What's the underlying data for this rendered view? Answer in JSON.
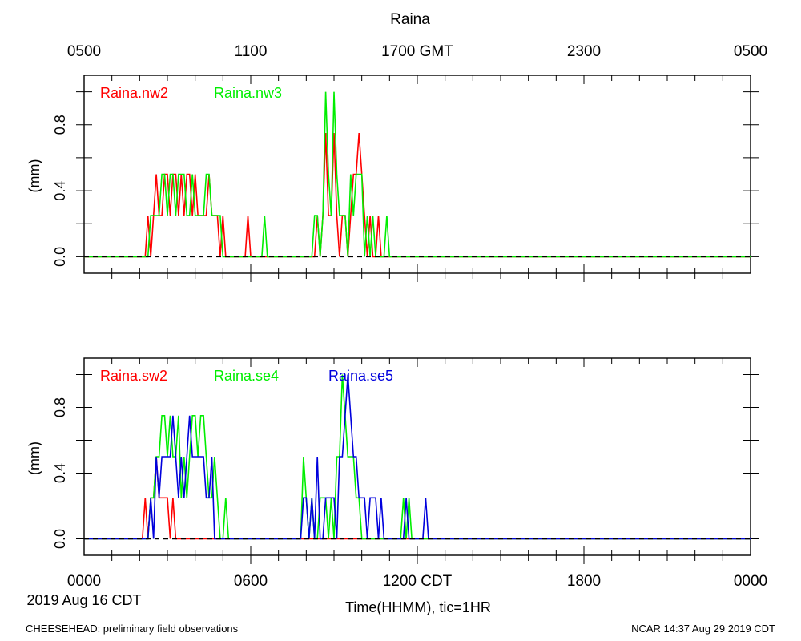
{
  "title": "Raina",
  "top_axis_labels": [
    "0500",
    "1100",
    "1700 GMT",
    "2300",
    "0500"
  ],
  "bottom_axis_labels": [
    "0000",
    "0600",
    "1200 CDT",
    "1800",
    "0000"
  ],
  "date_label": "2019 Aug 16 CDT",
  "xlabel": "Time(HHMM), tic=1HR",
  "footer_left": "CHEESEHEAD: preliminary field observations",
  "footer_right": "NCAR 14:37 Aug 29 2019 CDT",
  "colors": {
    "nw2": "#ff0000",
    "nw3": "#00ee00",
    "sw2": "#ff0000",
    "se4": "#00ee00",
    "se5": "#0000dd"
  },
  "chart_data": [
    {
      "type": "line",
      "panel": "upper",
      "ylabel": "(mm)",
      "ylim": [
        -0.1,
        1.1
      ],
      "yticks": [
        "0.0",
        "0.4",
        "0.8"
      ],
      "xlim_hours_cdt": [
        0,
        24
      ],
      "series": [
        {
          "name": "Raina.nw2",
          "points": [
            [
              0,
              0
            ],
            [
              2.2,
              0
            ],
            [
              2.3,
              0.25
            ],
            [
              2.4,
              0
            ],
            [
              2.5,
              0.25
            ],
            [
              2.6,
              0.5
            ],
            [
              2.7,
              0.25
            ],
            [
              2.8,
              0.25
            ],
            [
              2.9,
              0.5
            ],
            [
              3.0,
              0.5
            ],
            [
              3.1,
              0.25
            ],
            [
              3.2,
              0.5
            ],
            [
              3.3,
              0.5
            ],
            [
              3.4,
              0.25
            ],
            [
              3.5,
              0.5
            ],
            [
              3.6,
              0.25
            ],
            [
              3.7,
              0.5
            ],
            [
              3.8,
              0.5
            ],
            [
              3.9,
              0.25
            ],
            [
              4.0,
              0.5
            ],
            [
              4.1,
              0.25
            ],
            [
              4.2,
              0.25
            ],
            [
              4.3,
              0.25
            ],
            [
              4.4,
              0.25
            ],
            [
              4.5,
              0.5
            ],
            [
              4.6,
              0.25
            ],
            [
              4.7,
              0.25
            ],
            [
              4.8,
              0.25
            ],
            [
              4.9,
              0
            ],
            [
              5.0,
              0.25
            ],
            [
              5.1,
              0
            ],
            [
              5.8,
              0
            ],
            [
              5.9,
              0.25
            ],
            [
              6.0,
              0
            ],
            [
              8.3,
              0
            ],
            [
              8.4,
              0.25
            ],
            [
              8.5,
              0
            ],
            [
              8.6,
              0.25
            ],
            [
              8.7,
              0.75
            ],
            [
              8.8,
              0.25
            ],
            [
              8.9,
              0.25
            ],
            [
              9.0,
              0.75
            ],
            [
              9.1,
              0.25
            ],
            [
              9.2,
              0
            ],
            [
              9.3,
              0.25
            ],
            [
              9.4,
              0.25
            ],
            [
              9.5,
              0
            ],
            [
              9.6,
              0.25
            ],
            [
              9.7,
              0.5
            ],
            [
              9.8,
              0.5
            ],
            [
              9.9,
              0.75
            ],
            [
              10.0,
              0.5
            ],
            [
              10.1,
              0.25
            ],
            [
              10.2,
              0
            ],
            [
              10.3,
              0.25
            ],
            [
              10.4,
              0
            ],
            [
              10.5,
              0
            ],
            [
              10.6,
              0.25
            ],
            [
              10.7,
              0
            ],
            [
              24,
              0
            ]
          ]
        },
        {
          "name": "Raina.nw3",
          "points": [
            [
              0,
              0
            ],
            [
              2.3,
              0
            ],
            [
              2.4,
              0.25
            ],
            [
              2.5,
              0.25
            ],
            [
              2.6,
              0.25
            ],
            [
              2.7,
              0.25
            ],
            [
              2.8,
              0.5
            ],
            [
              2.9,
              0.5
            ],
            [
              3.0,
              0.25
            ],
            [
              3.1,
              0.5
            ],
            [
              3.2,
              0.5
            ],
            [
              3.3,
              0.25
            ],
            [
              3.4,
              0.5
            ],
            [
              3.5,
              0.5
            ],
            [
              3.6,
              0.5
            ],
            [
              3.7,
              0.25
            ],
            [
              3.8,
              0.25
            ],
            [
              3.9,
              0.5
            ],
            [
              4.0,
              0.25
            ],
            [
              4.1,
              0.25
            ],
            [
              4.2,
              0.25
            ],
            [
              4.3,
              0.25
            ],
            [
              4.4,
              0.5
            ],
            [
              4.5,
              0.5
            ],
            [
              4.6,
              0.25
            ],
            [
              4.7,
              0.25
            ],
            [
              4.8,
              0.25
            ],
            [
              4.9,
              0.25
            ],
            [
              5.0,
              0
            ],
            [
              5.1,
              0
            ],
            [
              6.4,
              0
            ],
            [
              6.5,
              0.25
            ],
            [
              6.6,
              0
            ],
            [
              8.2,
              0
            ],
            [
              8.3,
              0.25
            ],
            [
              8.4,
              0.25
            ],
            [
              8.5,
              0
            ],
            [
              8.6,
              0.25
            ],
            [
              8.7,
              1.0
            ],
            [
              8.8,
              0.5
            ],
            [
              8.9,
              0.25
            ],
            [
              9.0,
              1.0
            ],
            [
              9.1,
              0.5
            ],
            [
              9.2,
              0.25
            ],
            [
              9.3,
              0.25
            ],
            [
              9.4,
              0.25
            ],
            [
              9.5,
              0
            ],
            [
              9.6,
              0.5
            ],
            [
              9.7,
              0.25
            ],
            [
              9.8,
              0.5
            ],
            [
              9.9,
              0.5
            ],
            [
              10.0,
              0.5
            ],
            [
              10.1,
              0
            ],
            [
              10.2,
              0.25
            ],
            [
              10.3,
              0
            ],
            [
              10.4,
              0.25
            ],
            [
              10.5,
              0
            ],
            [
              10.8,
              0
            ],
            [
              10.9,
              0.25
            ],
            [
              11.0,
              0
            ],
            [
              24,
              0
            ]
          ]
        }
      ]
    },
    {
      "type": "line",
      "panel": "lower",
      "ylabel": "(mm)",
      "ylim": [
        -0.1,
        1.1
      ],
      "yticks": [
        "0.0",
        "0.4",
        "0.8"
      ],
      "xlim_hours_cdt": [
        0,
        24
      ],
      "series": [
        {
          "name": "Raina.sw2",
          "points": [
            [
              0,
              0
            ],
            [
              2.1,
              0
            ],
            [
              2.2,
              0.25
            ],
            [
              2.3,
              0
            ],
            [
              2.4,
              0.25
            ],
            [
              2.5,
              0.25
            ],
            [
              2.6,
              0.5
            ],
            [
              2.7,
              0.25
            ],
            [
              2.8,
              0.25
            ],
            [
              2.9,
              0.25
            ],
            [
              3.0,
              0.25
            ],
            [
              3.1,
              0
            ],
            [
              3.2,
              0.25
            ],
            [
              3.3,
              0
            ],
            [
              24,
              0
            ]
          ]
        },
        {
          "name": "Raina.se4",
          "points": [
            [
              0,
              0
            ],
            [
              2.3,
              0
            ],
            [
              2.4,
              0.25
            ],
            [
              2.5,
              0.25
            ],
            [
              2.6,
              0.5
            ],
            [
              2.7,
              0.5
            ],
            [
              2.8,
              0.75
            ],
            [
              2.9,
              0.75
            ],
            [
              3.0,
              0.5
            ],
            [
              3.1,
              0.75
            ],
            [
              3.2,
              0.5
            ],
            [
              3.3,
              0.5
            ],
            [
              3.4,
              0.75
            ],
            [
              3.5,
              0.25
            ],
            [
              3.6,
              0.5
            ],
            [
              3.7,
              0.25
            ],
            [
              3.8,
              0.5
            ],
            [
              3.9,
              0.75
            ],
            [
              4.0,
              0.75
            ],
            [
              4.1,
              0.5
            ],
            [
              4.2,
              0.75
            ],
            [
              4.3,
              0.75
            ],
            [
              4.4,
              0.5
            ],
            [
              4.5,
              0.25
            ],
            [
              4.6,
              0.25
            ],
            [
              4.7,
              0.5
            ],
            [
              4.8,
              0.25
            ],
            [
              4.9,
              0
            ],
            [
              5.0,
              0
            ],
            [
              5.1,
              0.25
            ],
            [
              5.2,
              0
            ],
            [
              7.8,
              0
            ],
            [
              7.9,
              0.5
            ],
            [
              8.0,
              0.25
            ],
            [
              8.1,
              0
            ],
            [
              8.2,
              0.25
            ],
            [
              8.3,
              0
            ],
            [
              8.4,
              0
            ],
            [
              8.5,
              0.25
            ],
            [
              8.6,
              0.25
            ],
            [
              8.7,
              0.25
            ],
            [
              8.8,
              0
            ],
            [
              8.9,
              0.25
            ],
            [
              9.0,
              0
            ],
            [
              9.1,
              0.5
            ],
            [
              9.2,
              0.5
            ],
            [
              9.3,
              1.0
            ],
            [
              9.4,
              0.75
            ],
            [
              9.5,
              0.5
            ],
            [
              9.6,
              0.5
            ],
            [
              9.7,
              0.5
            ],
            [
              9.8,
              0.25
            ],
            [
              9.9,
              0.25
            ],
            [
              10.0,
              0
            ],
            [
              10.1,
              0
            ],
            [
              11.4,
              0
            ],
            [
              11.5,
              0.25
            ],
            [
              11.6,
              0
            ],
            [
              11.7,
              0.25
            ],
            [
              11.8,
              0
            ],
            [
              24,
              0
            ]
          ]
        },
        {
          "name": "Raina.se5",
          "points": [
            [
              0,
              0
            ],
            [
              2.3,
              0
            ],
            [
              2.4,
              0.25
            ],
            [
              2.5,
              0
            ],
            [
              2.6,
              0.5
            ],
            [
              2.7,
              0.25
            ],
            [
              2.8,
              0.5
            ],
            [
              2.9,
              0.5
            ],
            [
              3.0,
              0.5
            ],
            [
              3.1,
              0.5
            ],
            [
              3.2,
              0.75
            ],
            [
              3.3,
              0.5
            ],
            [
              3.4,
              0.25
            ],
            [
              3.5,
              0.5
            ],
            [
              3.6,
              0.25
            ],
            [
              3.7,
              0.5
            ],
            [
              3.8,
              0.75
            ],
            [
              3.9,
              0.5
            ],
            [
              4.0,
              0.5
            ],
            [
              4.1,
              0.5
            ],
            [
              4.2,
              0.5
            ],
            [
              4.3,
              0.5
            ],
            [
              4.4,
              0.25
            ],
            [
              4.5,
              0.25
            ],
            [
              4.6,
              0.5
            ],
            [
              4.7,
              0
            ],
            [
              4.8,
              0
            ],
            [
              7.8,
              0
            ],
            [
              7.9,
              0.25
            ],
            [
              8.0,
              0.25
            ],
            [
              8.1,
              0
            ],
            [
              8.2,
              0.25
            ],
            [
              8.3,
              0
            ],
            [
              8.4,
              0.5
            ],
            [
              8.5,
              0
            ],
            [
              8.6,
              0
            ],
            [
              8.7,
              0.25
            ],
            [
              8.8,
              0.25
            ],
            [
              8.9,
              0.25
            ],
            [
              9.0,
              0.25
            ],
            [
              9.1,
              0
            ],
            [
              9.2,
              0.5
            ],
            [
              9.3,
              0.5
            ],
            [
              9.4,
              0.75
            ],
            [
              9.5,
              1.0
            ],
            [
              9.6,
              0.75
            ],
            [
              9.7,
              0.5
            ],
            [
              9.8,
              0.5
            ],
            [
              9.9,
              0.25
            ],
            [
              10.0,
              0.25
            ],
            [
              10.1,
              0.25
            ],
            [
              10.2,
              0
            ],
            [
              10.3,
              0.25
            ],
            [
              10.4,
              0.25
            ],
            [
              10.5,
              0.25
            ],
            [
              10.6,
              0
            ],
            [
              10.7,
              0.25
            ],
            [
              10.8,
              0
            ],
            [
              11.5,
              0
            ],
            [
              11.6,
              0.25
            ],
            [
              11.7,
              0
            ],
            [
              12.2,
              0
            ],
            [
              12.3,
              0.25
            ],
            [
              12.4,
              0
            ],
            [
              24,
              0
            ]
          ]
        }
      ]
    }
  ]
}
